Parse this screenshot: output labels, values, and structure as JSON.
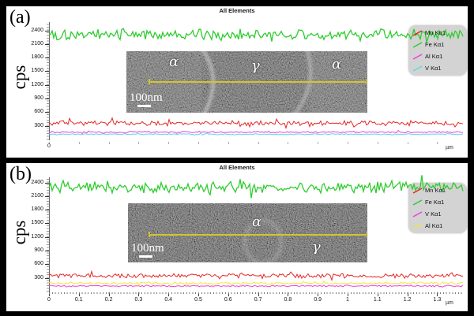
{
  "figure": {
    "background": "#000000",
    "panels": [
      {
        "label": "(a)",
        "title": "All Elements",
        "ylabel": "cps",
        "xunit": "µm",
        "inset": {
          "scalebar": "100nm",
          "regions": [
            "α",
            "γ",
            "α"
          ]
        },
        "legend": [
          {
            "name": "Mn Kα1",
            "color": "#e62626"
          },
          {
            "name": "Fe Kα1",
            "color": "#2ecc2e"
          },
          {
            "name": "Al Kα1",
            "color": "#ee3edd"
          },
          {
            "name": "V Kα1",
            "color": "#55dce8"
          }
        ]
      },
      {
        "label": "(b)",
        "title": "All Elements",
        "ylabel": "cps",
        "xunit": "µm",
        "inset": {
          "scalebar": "100nm",
          "regions": [
            "α",
            "γ"
          ]
        },
        "legend": [
          {
            "name": "Mn Kα1",
            "color": "#e62626"
          },
          {
            "name": "Fe Kα1",
            "color": "#2ecc2e"
          },
          {
            "name": "V Kα1",
            "color": "#ee3edd"
          },
          {
            "name": "Al Kα1",
            "color": "#f0e832"
          }
        ]
      }
    ]
  },
  "chart_data": [
    {
      "type": "line",
      "panel": "(a)",
      "title": "All Elements",
      "xlabel": "µm",
      "ylabel": "cps",
      "xlim": [
        0,
        1.38
      ],
      "ylim": [
        0,
        2580
      ],
      "yticks": [
        300,
        600,
        900,
        1200,
        1500,
        1800,
        2100,
        2400
      ],
      "xticks": [
        0
      ],
      "x_tick_interval_um": 0.1,
      "grid": false,
      "legend_position": "upper-right",
      "series": [
        {
          "name": "Fe Kα1",
          "color": "#2ecc2e",
          "profile": "flat-noise",
          "mean_cps": 2310,
          "noise_cps": 95
        },
        {
          "name": "V Kα1",
          "color": "#55dce8",
          "profile": "flat-noise",
          "mean_cps": 115,
          "noise_cps": 11
        },
        {
          "name": "Al Kα1",
          "color": "#ee3edd",
          "profile": "flat-noise",
          "mean_cps": 162,
          "noise_cps": 16
        },
        {
          "name": "Mn Kα1",
          "color": "#e62626",
          "profile": "flat-noise",
          "mean_cps": 358,
          "noise_cps": 40
        }
      ]
    },
    {
      "type": "line",
      "panel": "(b)",
      "title": "All Elements",
      "xlabel": "µm",
      "ylabel": "cps",
      "xlim": [
        0,
        1.38
      ],
      "ylim": [
        0,
        2580
      ],
      "yticks": [
        300,
        600,
        900,
        1200,
        1500,
        1800,
        2100,
        2400
      ],
      "xticks": [
        0,
        0.1,
        0.2,
        0.3,
        0.4,
        0.5,
        0.6,
        0.7,
        0.8,
        0.9,
        1,
        1.1,
        1.2,
        1.3
      ],
      "x_tick_interval_um": 0.1,
      "grid": false,
      "legend_position": "upper-right",
      "series": [
        {
          "name": "Fe Kα1",
          "color": "#2ecc2e",
          "profile": "flat-noise",
          "mean_cps": 2300,
          "noise_cps": 100
        },
        {
          "name": "V Kα1",
          "color": "#ee3edd",
          "profile": "flat-noise",
          "mean_cps": 124,
          "noise_cps": 13
        },
        {
          "name": "Al Kα1",
          "color": "#f0e832",
          "profile": "flat-noise",
          "mean_cps": 182,
          "noise_cps": 21
        },
        {
          "name": "Mn Kα1",
          "color": "#e62626",
          "profile": "flat-noise",
          "mean_cps": 350,
          "noise_cps": 42
        }
      ]
    }
  ]
}
